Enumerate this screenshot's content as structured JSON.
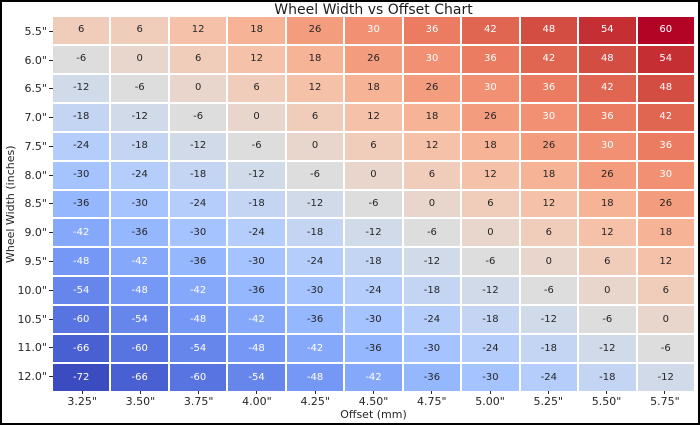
{
  "frame": {
    "background": "#ffffff",
    "border_color": "#000000"
  },
  "chart_data": {
    "type": "heatmap",
    "title": "Wheel Width vs Offset Chart",
    "xlabel": "Offset (mm)",
    "ylabel": "Wheel Width (inches)",
    "x_categories": [
      "3.25\"",
      "3.50\"",
      "3.75\"",
      "4.00\"",
      "4.25\"",
      "4.50\"",
      "4.75\"",
      "5.00\"",
      "5.25\"",
      "5.50\"",
      "5.75\""
    ],
    "y_categories": [
      "5.5\"",
      "6.0\"",
      "6.5\"",
      "7.0\"",
      "7.5\"",
      "8.0\"",
      "8.5\"",
      "9.0\"",
      "9.5\"",
      "10.0\"",
      "10.5\"",
      "11.0\"",
      "12.0\""
    ],
    "values": [
      [
        6,
        6,
        12,
        18,
        26,
        30,
        36,
        42,
        48,
        54,
        60
      ],
      [
        -6,
        0,
        6,
        12,
        18,
        26,
        30,
        36,
        42,
        48,
        54
      ],
      [
        -12,
        -6,
        0,
        6,
        12,
        18,
        26,
        30,
        36,
        42,
        48
      ],
      [
        -18,
        -12,
        -6,
        0,
        6,
        12,
        18,
        26,
        30,
        36,
        42
      ],
      [
        -24,
        -18,
        -12,
        -6,
        0,
        6,
        12,
        18,
        26,
        30,
        36
      ],
      [
        -30,
        -24,
        -18,
        -12,
        -6,
        0,
        6,
        12,
        18,
        26,
        30
      ],
      [
        -36,
        -30,
        -24,
        -18,
        -12,
        -6,
        0,
        6,
        12,
        18,
        26
      ],
      [
        -42,
        -36,
        -30,
        -24,
        -18,
        -12,
        -6,
        0,
        6,
        12,
        18
      ],
      [
        -48,
        -42,
        -36,
        -30,
        -24,
        -18,
        -12,
        -6,
        0,
        6,
        12
      ],
      [
        -54,
        -48,
        -42,
        -36,
        -30,
        -24,
        -18,
        -12,
        -6,
        0,
        6
      ],
      [
        -60,
        -54,
        -48,
        -42,
        -36,
        -30,
        -24,
        -18,
        -12,
        -6,
        0
      ],
      [
        -66,
        -60,
        -54,
        -48,
        -42,
        -36,
        -30,
        -24,
        -18,
        -12,
        -6
      ],
      [
        -72,
        -66,
        -60,
        -54,
        -48,
        -42,
        -36,
        -30,
        -24,
        -18,
        -12
      ]
    ],
    "colormap": {
      "name": "coolwarm",
      "vmin": -72,
      "vmax": 60,
      "min_color": "#3b4cc0",
      "mid_color": "#dddddd",
      "max_color": "#b40426"
    },
    "annotation_colors": {
      "dark": "#262626",
      "light": "#ffffff"
    },
    "grid_line_color": "#ffffff",
    "legend": "none",
    "grid": "cell-borders-only"
  }
}
